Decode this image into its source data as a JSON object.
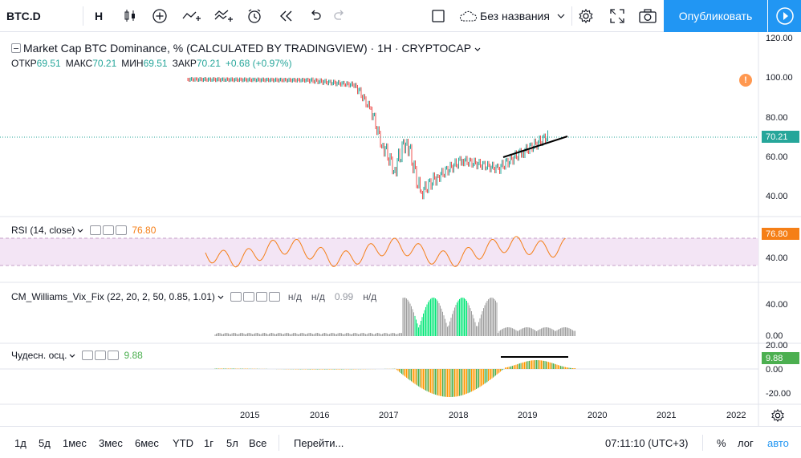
{
  "toolbar": {
    "symbol": "BTC.D",
    "interval": "Н",
    "layout_name": "Без названия",
    "publish_label": "Опубликовать"
  },
  "main_pane": {
    "title": "Market Cap BTC Dominance, % (CALCULATED BY TRADINGVIEW) · 1H · CRYPTOCAP",
    "ohlc": [
      {
        "k": "ОТКР",
        "v": "69.51"
      },
      {
        "k": "МАКС",
        "v": "70.21"
      },
      {
        "k": "МИН",
        "v": "69.51"
      },
      {
        "k": "ЗАКР",
        "v": "70.21"
      }
    ],
    "change": "+0.68 (+0.97%)",
    "last_price": "70.21",
    "axis_ticks": [
      "120.00",
      "100.00",
      "80.00",
      "60.00",
      "40.00"
    ]
  },
  "rsi_pane": {
    "title": "RSI (14, close)",
    "value": "76.80",
    "tag": "76.80",
    "axis_ticks": [
      "40.00"
    ]
  },
  "vix_pane": {
    "title": "CM_Williams_Vix_Fix (22, 20, 2, 50, 0.85, 1.01)",
    "values": [
      "н/д",
      "н/д",
      "0.99",
      "н/д"
    ],
    "axis_ticks": [
      "40.00",
      "0.00"
    ]
  },
  "ao_pane": {
    "title": "Чудесн. осц.",
    "value": "9.88",
    "tag": "9.88",
    "axis_ticks": [
      "20.00",
      "0.00",
      "-20.00"
    ]
  },
  "time_axis": [
    "2015",
    "2016",
    "2017",
    "2018",
    "2019",
    "2020",
    "2021",
    "2022"
  ],
  "bottom": {
    "ranges": [
      "1д",
      "5д",
      "1мес",
      "3мес",
      "6мес",
      "YTD",
      "1г",
      "5л",
      "Все"
    ],
    "goto": "Перейти...",
    "clock": "07:11:10 (UTC+3)",
    "percent": "%",
    "log": "лог",
    "auto": "авто"
  },
  "colors": {
    "accent": "#2196f3",
    "up": "#26a69a",
    "down": "#ef5350",
    "rsi_line": "#f57f17",
    "rsi_band": "#f3e5f5",
    "vix_bar": "#9e9e9e",
    "vix_high": "#00e676",
    "ao_green": "#4caf50",
    "ao_orange": "#ff9800",
    "trend_line": "#000000"
  },
  "icons": [
    "indicator-icon",
    "add-icon",
    "compare-icon",
    "templates-icon",
    "alert-icon",
    "replay-icon",
    "undo-icon",
    "redo-icon",
    "cloud-icon",
    "settings-icon",
    "fullscreen-icon",
    "camera-icon",
    "play-icon"
  ]
}
